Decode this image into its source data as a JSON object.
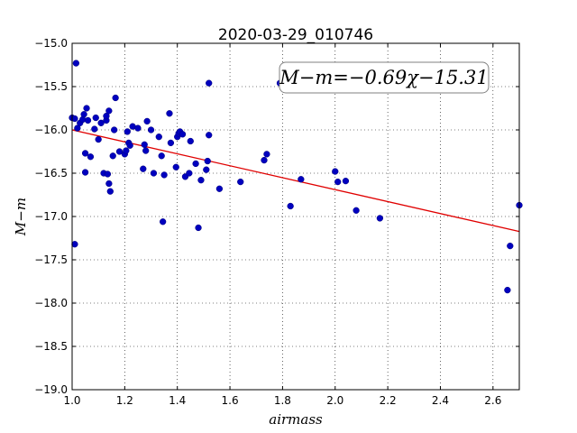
{
  "chart_data": {
    "type": "scatter",
    "title": "2020-03-29_010746",
    "xlabel": "airmass",
    "ylabel": "M−m",
    "xlim": [
      1.0,
      2.7
    ],
    "ylim": [
      -19.0,
      -15.0
    ],
    "y_inverted": true,
    "grid": true,
    "x_ticks": [
      "1.0",
      "1.2",
      "1.4",
      "1.6",
      "1.8",
      "2.0",
      "2.2",
      "2.4",
      "2.6"
    ],
    "y_ticks": [
      "−15.0",
      "−15.5",
      "−16.0",
      "−16.5",
      "−17.0",
      "−17.5",
      "−18.0",
      "−18.5",
      "−19.0"
    ],
    "annotation": "M−m=−0.69χ−15.31",
    "colors": {
      "points": "#0000bf",
      "fit": "#e00000"
    },
    "fit": {
      "slope": -0.69,
      "intercept": -15.31,
      "x_range": [
        1.0,
        2.7
      ]
    },
    "points": [
      [
        1.0,
        -15.86
      ],
      [
        1.01,
        -17.32
      ],
      [
        1.01,
        -15.87
      ],
      [
        1.015,
        -15.23
      ],
      [
        1.02,
        -15.98
      ],
      [
        1.03,
        -15.92
      ],
      [
        1.04,
        -15.88
      ],
      [
        1.045,
        -15.82
      ],
      [
        1.05,
        -16.27
      ],
      [
        1.05,
        -16.49
      ],
      [
        1.055,
        -15.75
      ],
      [
        1.06,
        -15.89
      ],
      [
        1.07,
        -16.31
      ],
      [
        1.085,
        -15.99
      ],
      [
        1.09,
        -15.86
      ],
      [
        1.1,
        -16.11
      ],
      [
        1.11,
        -15.92
      ],
      [
        1.12,
        -16.5
      ],
      [
        1.13,
        -15.89
      ],
      [
        1.13,
        -15.84
      ],
      [
        1.135,
        -16.51
      ],
      [
        1.14,
        -15.78
      ],
      [
        1.14,
        -16.62
      ],
      [
        1.145,
        -16.71
      ],
      [
        1.155,
        -16.3
      ],
      [
        1.16,
        -16.0
      ],
      [
        1.165,
        -15.63
      ],
      [
        1.18,
        -16.25
      ],
      [
        1.2,
        -16.28
      ],
      [
        1.205,
        -16.24
      ],
      [
        1.21,
        -16.02
      ],
      [
        1.215,
        -16.15
      ],
      [
        1.22,
        -16.18
      ],
      [
        1.23,
        -15.96
      ],
      [
        1.25,
        -15.98
      ],
      [
        1.27,
        -16.45
      ],
      [
        1.275,
        -16.17
      ],
      [
        1.28,
        -16.24
      ],
      [
        1.285,
        -15.9
      ],
      [
        1.3,
        -16.0
      ],
      [
        1.31,
        -16.5
      ],
      [
        1.33,
        -16.08
      ],
      [
        1.34,
        -16.3
      ],
      [
        1.345,
        -17.06
      ],
      [
        1.35,
        -16.52
      ],
      [
        1.37,
        -15.81
      ],
      [
        1.375,
        -16.15
      ],
      [
        1.395,
        -16.43
      ],
      [
        1.4,
        -16.08
      ],
      [
        1.405,
        -16.04
      ],
      [
        1.41,
        -16.02
      ],
      [
        1.42,
        -16.05
      ],
      [
        1.43,
        -16.54
      ],
      [
        1.445,
        -16.5
      ],
      [
        1.45,
        -16.13
      ],
      [
        1.47,
        -16.39
      ],
      [
        1.48,
        -17.13
      ],
      [
        1.49,
        -16.58
      ],
      [
        1.51,
        -16.46
      ],
      [
        1.515,
        -16.36
      ],
      [
        1.52,
        -15.46
      ],
      [
        1.52,
        -16.06
      ],
      [
        1.56,
        -16.68
      ],
      [
        1.64,
        -16.6
      ],
      [
        1.73,
        -16.35
      ],
      [
        1.74,
        -16.28
      ],
      [
        1.79,
        -15.46
      ],
      [
        1.83,
        -16.88
      ],
      [
        1.87,
        -16.57
      ],
      [
        2.0,
        -16.48
      ],
      [
        2.01,
        -16.6
      ],
      [
        2.04,
        -16.59
      ],
      [
        2.08,
        -16.93
      ],
      [
        2.17,
        -17.02
      ],
      [
        2.655,
        -17.85
      ],
      [
        2.665,
        -17.34
      ],
      [
        2.7,
        -16.87
      ]
    ]
  }
}
